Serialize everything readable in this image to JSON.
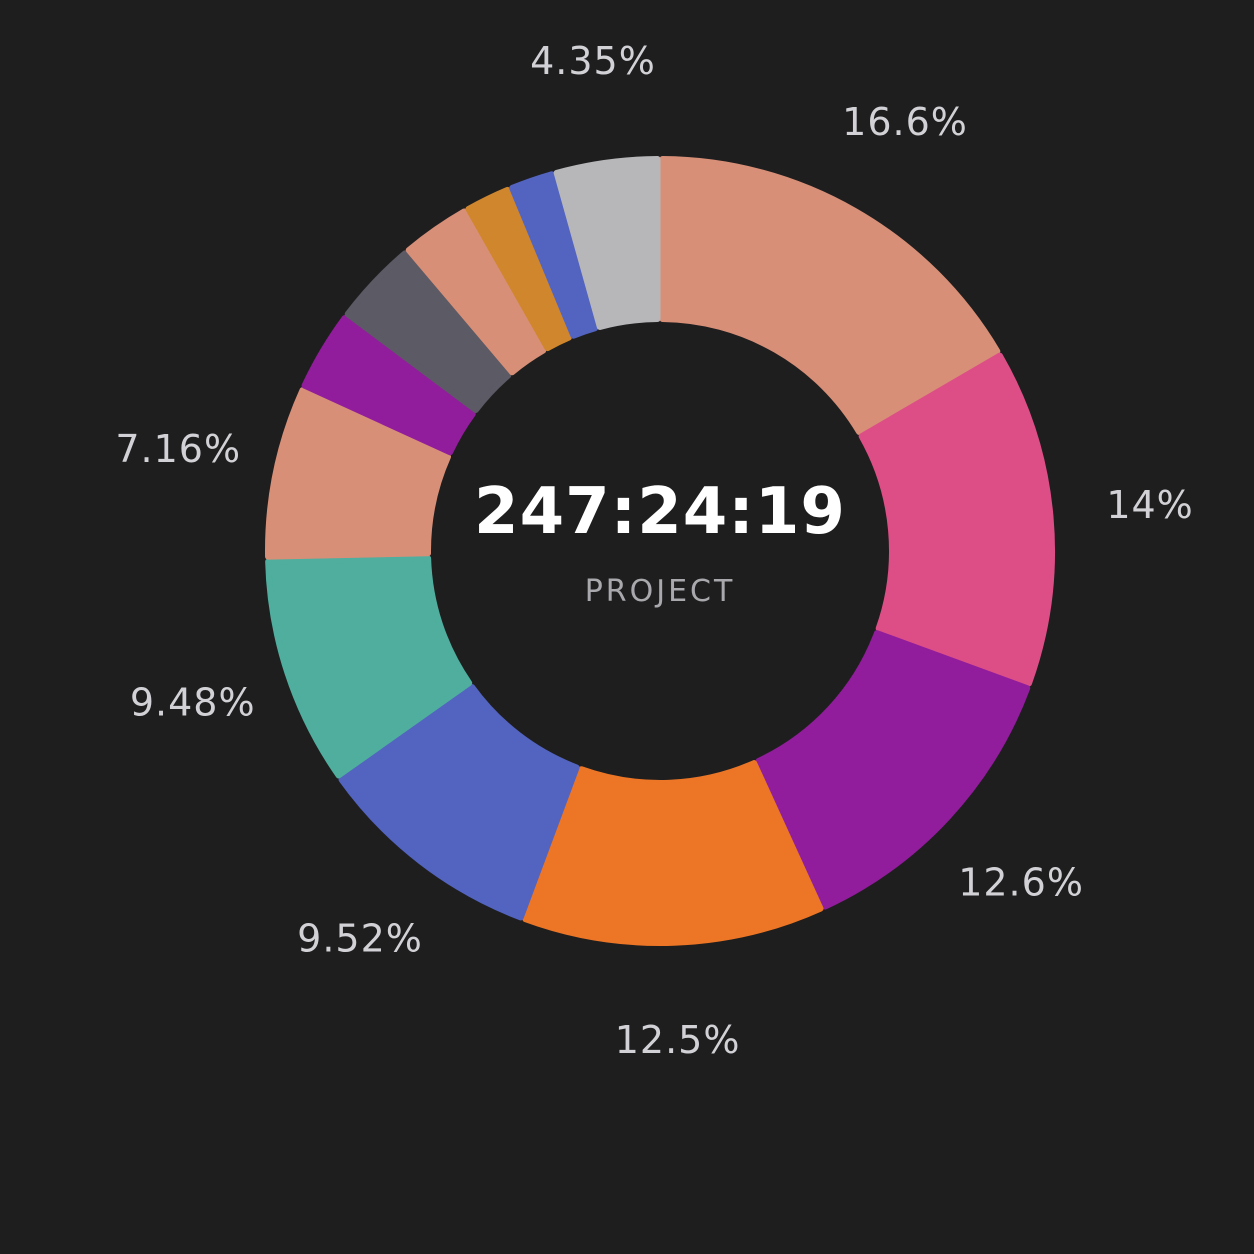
{
  "center": {
    "total": "247:24:19",
    "label": "PROJECT"
  },
  "chart_data": {
    "type": "pie",
    "variant": "donut",
    "title": "",
    "slices": [
      {
        "value": 16.6,
        "label": "16.6%",
        "color": "#d88f77"
      },
      {
        "value": 14.0,
        "label": "14%",
        "color": "#dd4e87"
      },
      {
        "value": 12.6,
        "label": "12.6%",
        "color": "#911d9c"
      },
      {
        "value": 12.5,
        "label": "12.5%",
        "color": "#ec7626"
      },
      {
        "value": 9.52,
        "label": "9.52%",
        "color": "#5264c0"
      },
      {
        "value": 9.48,
        "label": "9.48%",
        "color": "#4fae9e"
      },
      {
        "value": 7.16,
        "label": "7.16%",
        "color": "#d88f77"
      },
      {
        "value": 3.4,
        "label": "",
        "color": "#911d9c"
      },
      {
        "value": 3.6,
        "label": "",
        "color": "#5b5a65"
      },
      {
        "value": 2.95,
        "label": "",
        "color": "#d88f77"
      },
      {
        "value": 1.97,
        "label": "",
        "color": "#d0862c"
      },
      {
        "value": 1.91,
        "label": "",
        "color": "#5264c0"
      },
      {
        "value": 4.35,
        "label": "4.35%",
        "color": "#b7b7ba"
      }
    ]
  }
}
